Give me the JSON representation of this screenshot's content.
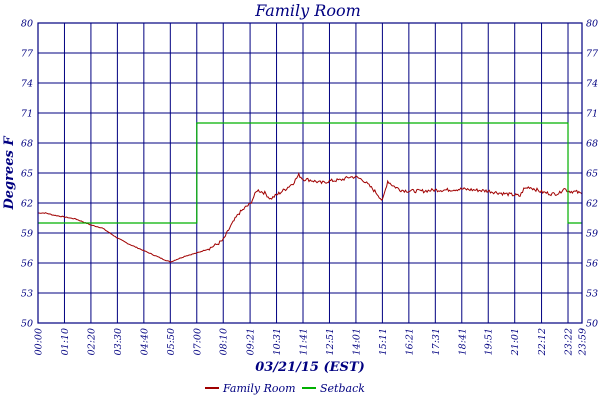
{
  "chart_data": {
    "type": "line",
    "title": "Family Room",
    "xlabel": "03/21/15 (EST)",
    "ylabel": "Degrees F",
    "x_unit": "time of day",
    "ylim": [
      50,
      80
    ],
    "y_ticks": [
      50,
      53,
      56,
      59,
      62,
      65,
      68,
      71,
      74,
      77,
      80
    ],
    "x_tick_labels": [
      "00:00",
      "01:10",
      "02:20",
      "03:30",
      "04:40",
      "05:50",
      "07:00",
      "08:10",
      "09:21",
      "10:31",
      "11:41",
      "12:51",
      "14:01",
      "15:11",
      "16:21",
      "17:31",
      "18:41",
      "19:51",
      "21:01",
      "22:12",
      "23:22",
      "23:59"
    ],
    "x_range": [
      "00:00",
      "23:59"
    ],
    "grid": true,
    "legend_position": "bottom-center",
    "colors": {
      "grid": "#000080",
      "text": "#000080",
      "family_room": "#a00000",
      "setback": "#00b000"
    },
    "series": [
      {
        "name": "Family Room",
        "color": "#a00000",
        "points": [
          [
            "00:00",
            61.0
          ],
          [
            "00:20",
            61.0
          ],
          [
            "00:40",
            60.8
          ],
          [
            "01:10",
            60.6
          ],
          [
            "01:40",
            60.4
          ],
          [
            "02:00",
            60.1
          ],
          [
            "02:20",
            59.8
          ],
          [
            "02:50",
            59.5
          ],
          [
            "03:10",
            59.0
          ],
          [
            "03:30",
            58.5
          ],
          [
            "04:00",
            57.9
          ],
          [
            "04:30",
            57.4
          ],
          [
            "05:00",
            56.9
          ],
          [
            "05:30",
            56.4
          ],
          [
            "05:50",
            56.1
          ],
          [
            "06:10",
            56.4
          ],
          [
            "06:30",
            56.7
          ],
          [
            "07:00",
            57.0
          ],
          [
            "07:30",
            57.4
          ],
          [
            "07:55",
            57.9
          ],
          [
            "08:10",
            58.3
          ],
          [
            "08:30",
            59.7
          ],
          [
            "08:50",
            60.9
          ],
          [
            "09:10",
            61.6
          ],
          [
            "09:21",
            61.9
          ],
          [
            "09:40",
            63.3
          ],
          [
            "10:00",
            63.0
          ],
          [
            "10:15",
            62.4
          ],
          [
            "10:31",
            62.8
          ],
          [
            "10:55",
            63.4
          ],
          [
            "11:15",
            64.0
          ],
          [
            "11:30",
            64.8
          ],
          [
            "11:41",
            64.4
          ],
          [
            "12:00",
            64.3
          ],
          [
            "12:30",
            64.0
          ],
          [
            "12:51",
            64.2
          ],
          [
            "13:20",
            64.3
          ],
          [
            "13:45",
            64.6
          ],
          [
            "14:01",
            64.6
          ],
          [
            "14:20",
            64.3
          ],
          [
            "14:45",
            63.4
          ],
          [
            "15:00",
            62.8
          ],
          [
            "15:11",
            62.2
          ],
          [
            "15:25",
            64.2
          ],
          [
            "15:40",
            63.7
          ],
          [
            "16:00",
            63.3
          ],
          [
            "16:21",
            63.2
          ],
          [
            "17:00",
            63.2
          ],
          [
            "17:31",
            63.3
          ],
          [
            "18:00",
            63.3
          ],
          [
            "18:41",
            63.4
          ],
          [
            "19:15",
            63.3
          ],
          [
            "19:51",
            63.2
          ],
          [
            "20:20",
            63.0
          ],
          [
            "21:01",
            62.8
          ],
          [
            "21:15",
            62.7
          ],
          [
            "21:25",
            63.4
          ],
          [
            "21:40",
            63.6
          ],
          [
            "22:00",
            63.3
          ],
          [
            "22:12",
            63.1
          ],
          [
            "22:40",
            62.9
          ],
          [
            "23:00",
            63.0
          ],
          [
            "23:10",
            63.5
          ],
          [
            "23:22",
            63.2
          ],
          [
            "23:45",
            63.1
          ],
          [
            "23:59",
            62.9
          ]
        ]
      },
      {
        "name": "Setback",
        "color": "#00b000",
        "points": [
          [
            "00:00",
            60.0
          ],
          [
            "07:00",
            60.0
          ],
          [
            "07:00",
            70.0
          ],
          [
            "23:22",
            70.0
          ],
          [
            "23:22",
            60.0
          ],
          [
            "23:59",
            60.0
          ]
        ]
      }
    ]
  }
}
